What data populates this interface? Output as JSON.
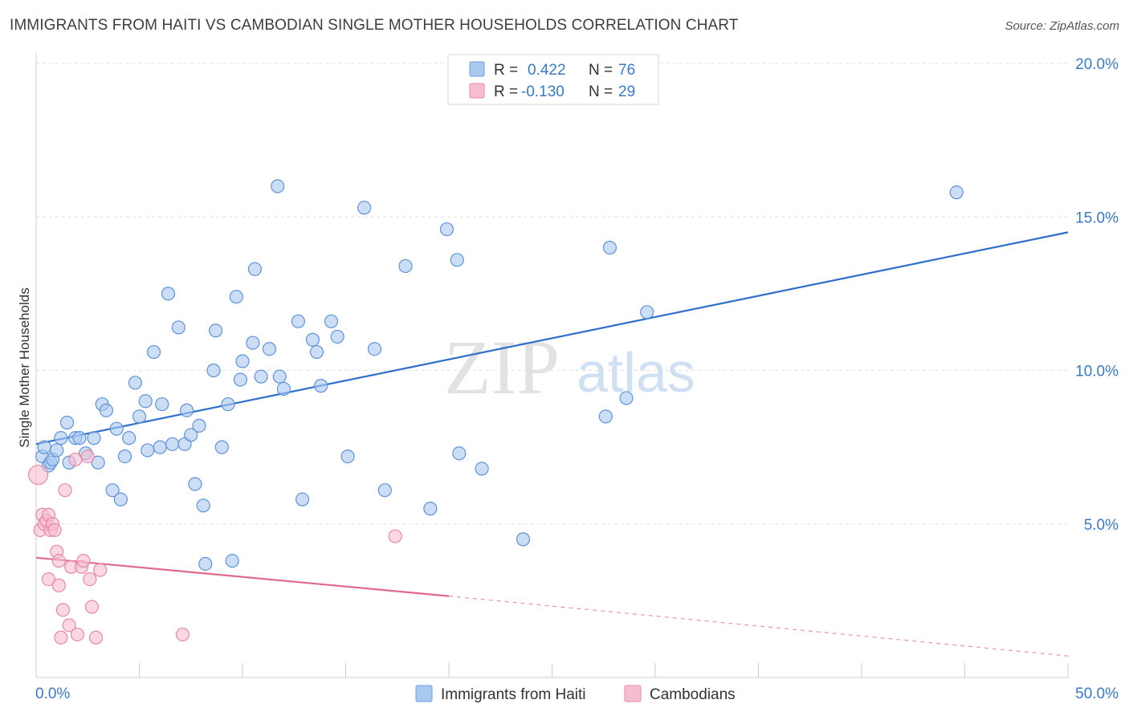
{
  "title": "IMMIGRANTS FROM HAITI VS CAMBODIAN SINGLE MOTHER HOUSEHOLDS CORRELATION CHART",
  "source": "Source: ZipAtlas.com",
  "watermark": {
    "zip": "ZIP",
    "atlas": "atlas"
  },
  "legend": {
    "rows": [
      {
        "r_label": "R =",
        "r_value": "0.422",
        "n_label": "N =",
        "n_value": "76",
        "color": "#a9c8f0",
        "stroke": "#6f9fdc"
      },
      {
        "r_label": "R =",
        "r_value": "-0.130",
        "n_label": "N =",
        "n_value": "29",
        "color": "#f6bcd0",
        "stroke": "#e88aa8"
      }
    ]
  },
  "chart_data": {
    "type": "scatter",
    "title": "IMMIGRANTS FROM HAITI VS CAMBODIAN SINGLE MOTHER HOUSEHOLDS CORRELATION CHART",
    "xlabel": "",
    "ylabel": "Single Mother Households",
    "xlim": [
      0,
      50
    ],
    "ylim": [
      0,
      20
    ],
    "x_tick_labels": [
      "0.0%",
      "50.0%"
    ],
    "y_ticks": [
      5,
      10,
      15,
      20
    ],
    "y_tick_labels": [
      "5.0%",
      "10.0%",
      "15.0%",
      "20.0%"
    ],
    "grid": true,
    "legend_position": "top-center",
    "series": [
      {
        "name": "Immigrants from Haiti",
        "color": "#a9c8f0",
        "stroke": "#5f93d6",
        "line_color": "#2e6fcc",
        "trend": {
          "x": [
            0,
            50
          ],
          "y": [
            7.6,
            14.5
          ]
        },
        "points": [
          [
            0.3,
            7.2
          ],
          [
            0.4,
            7.5
          ],
          [
            0.6,
            6.9
          ],
          [
            0.7,
            7.0
          ],
          [
            0.8,
            7.1
          ],
          [
            1.0,
            7.4
          ],
          [
            1.2,
            7.8
          ],
          [
            1.5,
            8.3
          ],
          [
            1.6,
            7.0
          ],
          [
            1.9,
            7.8
          ],
          [
            2.1,
            7.8
          ],
          [
            2.4,
            7.3
          ],
          [
            2.8,
            7.8
          ],
          [
            3.0,
            7.0
          ],
          [
            3.2,
            8.9
          ],
          [
            3.4,
            8.7
          ],
          [
            3.7,
            6.1
          ],
          [
            3.9,
            8.1
          ],
          [
            4.1,
            5.8
          ],
          [
            4.3,
            7.2
          ],
          [
            4.5,
            7.8
          ],
          [
            4.8,
            9.6
          ],
          [
            5.0,
            8.5
          ],
          [
            5.3,
            9.0
          ],
          [
            5.4,
            7.4
          ],
          [
            5.7,
            10.6
          ],
          [
            6.0,
            7.5
          ],
          [
            6.1,
            8.9
          ],
          [
            6.4,
            12.5
          ],
          [
            6.6,
            7.6
          ],
          [
            6.9,
            11.4
          ],
          [
            7.2,
            7.6
          ],
          [
            7.3,
            8.7
          ],
          [
            7.5,
            7.9
          ],
          [
            7.7,
            6.3
          ],
          [
            7.9,
            8.2
          ],
          [
            8.1,
            5.6
          ],
          [
            8.2,
            3.7
          ],
          [
            8.6,
            10.0
          ],
          [
            8.7,
            11.3
          ],
          [
            9.0,
            7.5
          ],
          [
            9.3,
            8.9
          ],
          [
            9.5,
            3.8
          ],
          [
            9.7,
            12.4
          ],
          [
            9.9,
            9.7
          ],
          [
            10.0,
            10.3
          ],
          [
            10.5,
            10.9
          ],
          [
            10.6,
            13.3
          ],
          [
            10.9,
            9.8
          ],
          [
            11.3,
            10.7
          ],
          [
            11.7,
            16.0
          ],
          [
            11.8,
            9.8
          ],
          [
            12.0,
            9.4
          ],
          [
            12.7,
            11.6
          ],
          [
            12.9,
            5.8
          ],
          [
            13.4,
            11.0
          ],
          [
            13.6,
            10.6
          ],
          [
            13.8,
            9.5
          ],
          [
            14.3,
            11.6
          ],
          [
            14.6,
            11.1
          ],
          [
            15.1,
            7.2
          ],
          [
            15.9,
            15.3
          ],
          [
            16.4,
            10.7
          ],
          [
            16.9,
            6.1
          ],
          [
            17.9,
            13.4
          ],
          [
            19.1,
            5.5
          ],
          [
            19.9,
            14.6
          ],
          [
            20.4,
            13.6
          ],
          [
            20.5,
            7.3
          ],
          [
            21.6,
            6.8
          ],
          [
            23.6,
            4.5
          ],
          [
            27.6,
            8.5
          ],
          [
            27.8,
            14.0
          ],
          [
            28.6,
            9.1
          ],
          [
            29.6,
            11.9
          ],
          [
            44.6,
            15.8
          ]
        ]
      },
      {
        "name": "Cambodians",
        "color": "#f6bcd0",
        "stroke": "#e58aa8",
        "line_color": "#e0688f",
        "trend": {
          "x": [
            0,
            20
          ],
          "y": [
            3.9,
            2.65
          ]
        },
        "trend_extension": {
          "x": [
            20,
            50
          ],
          "y": [
            2.65,
            0.7
          ]
        },
        "points": [
          [
            0.1,
            6.6
          ],
          [
            0.2,
            4.8
          ],
          [
            0.3,
            5.3
          ],
          [
            0.4,
            5.0
          ],
          [
            0.5,
            5.1
          ],
          [
            0.6,
            5.3
          ],
          [
            0.6,
            3.2
          ],
          [
            0.7,
            4.8
          ],
          [
            0.8,
            5.0
          ],
          [
            0.9,
            4.8
          ],
          [
            1.0,
            4.1
          ],
          [
            1.1,
            3.0
          ],
          [
            1.1,
            3.8
          ],
          [
            1.2,
            1.3
          ],
          [
            1.3,
            2.2
          ],
          [
            1.4,
            6.1
          ],
          [
            1.6,
            1.7
          ],
          [
            1.7,
            3.6
          ],
          [
            1.9,
            7.1
          ],
          [
            2.0,
            1.4
          ],
          [
            2.2,
            3.6
          ],
          [
            2.3,
            3.8
          ],
          [
            2.5,
            7.2
          ],
          [
            2.6,
            3.2
          ],
          [
            2.7,
            2.3
          ],
          [
            2.9,
            1.3
          ],
          [
            3.1,
            3.5
          ],
          [
            7.1,
            1.4
          ],
          [
            17.4,
            4.6
          ]
        ]
      }
    ]
  },
  "bottom_legend": [
    {
      "label": "Immigrants from Haiti",
      "color": "#a9c8f0",
      "stroke": "#6f9fdc"
    },
    {
      "label": "Cambodians",
      "color": "#f6bcd0",
      "stroke": "#e88aa8"
    }
  ]
}
